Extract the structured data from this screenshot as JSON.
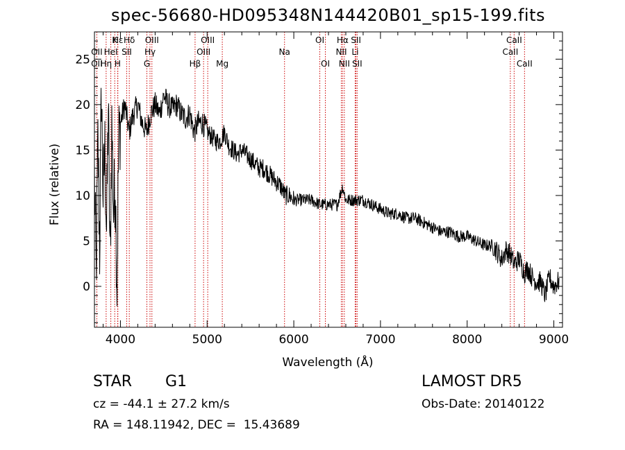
{
  "title": "spec-56680-HD095348N144420B01_sp15-199.fits",
  "object": {
    "class": "STAR",
    "subclass": "G1"
  },
  "survey": "LAMOST DR5",
  "cz": "cz = -44.1 ± 27.2 km/s",
  "obs_date": "Obs-Date: 20140122",
  "radec": "RA = 148.11942, DEC =  15.43689",
  "colors": {
    "spectrum": "#000000",
    "line_markers": "#cc0000",
    "axes": "#000000"
  },
  "chart_data": {
    "type": "line",
    "title": "spec-56680-HD095348N144420B01_sp15-199.fits",
    "xlabel": "Wavelength (Å)",
    "ylabel": "Flux (relative)",
    "xlim": [
      3700,
      9100
    ],
    "ylim": [
      -4.5,
      28
    ],
    "xticks": [
      4000,
      5000,
      6000,
      7000,
      8000,
      9000
    ],
    "yticks": [
      0,
      5,
      10,
      15,
      20,
      25
    ],
    "grid": false,
    "series": [
      {
        "x": [
          3700,
          3720,
          3740,
          3760,
          3780,
          3800,
          3820,
          3840,
          3860,
          3880,
          3900,
          3920,
          3940,
          3960,
          3980,
          4000,
          4050,
          4100,
          4150,
          4200,
          4250,
          4300,
          4350,
          4400,
          4450,
          4500,
          4550,
          4600,
          4650,
          4700,
          4750,
          4800,
          4850,
          4900,
          4950,
          5000,
          5050,
          5100,
          5150,
          5200,
          5250,
          5300,
          5350,
          5400,
          5450,
          5500,
          5550,
          5600,
          5650,
          5700,
          5750,
          5800,
          5850,
          5900,
          5950,
          6000,
          6100,
          6200,
          6300,
          6400,
          6500,
          6563,
          6600,
          6700,
          6800,
          6900,
          7000,
          7100,
          7200,
          7300,
          7400,
          7500,
          7600,
          7700,
          7800,
          7900,
          8000,
          8100,
          8200,
          8300,
          8400,
          8450,
          8500,
          8542,
          8600,
          8662,
          8700,
          8750,
          8800,
          8850,
          8900,
          8950,
          9000,
          9050
        ],
        "y": [
          12,
          1,
          16,
          4,
          22,
          10,
          15,
          6,
          20,
          2,
          18,
          8,
          12,
          0,
          16,
          18,
          20,
          17,
          19,
          20,
          18,
          17,
          19,
          20,
          19,
          21,
          20,
          19.5,
          20,
          19,
          18.5,
          19,
          17,
          18,
          18,
          17,
          16.5,
          16,
          16,
          17,
          15.5,
          15,
          14.5,
          15,
          14.5,
          14,
          13.5,
          13,
          13,
          12.5,
          12,
          11.5,
          11,
          10,
          10,
          9.5,
          9.5,
          9.5,
          9,
          9,
          9,
          11,
          9.5,
          9.5,
          9.5,
          9,
          8.5,
          8,
          8,
          7.5,
          7.5,
          7,
          6.5,
          6,
          6,
          5.5,
          5.5,
          5,
          4.5,
          4.5,
          3,
          4,
          3.5,
          2.5,
          3,
          1.5,
          2,
          1,
          0.5,
          0.5,
          -1,
          1,
          0,
          0.5
        ]
      }
    ],
    "line_labels": [
      {
        "name": "Hε",
        "wavelength": 3970,
        "row": 1
      },
      {
        "name": "K",
        "wavelength": 3934,
        "row": 1
      },
      {
        "name": "Hδ",
        "wavelength": 4102,
        "row": 1
      },
      {
        "name": "OIII",
        "wavelength": 4363,
        "row": 1
      },
      {
        "name": "OIII",
        "wavelength": 5007,
        "row": 1
      },
      {
        "name": "OI",
        "wavelength": 6300,
        "row": 1
      },
      {
        "name": "Hα",
        "wavelength": 6563,
        "row": 1
      },
      {
        "name": "SII",
        "wavelength": 6717,
        "row": 1
      },
      {
        "name": "CaII",
        "wavelength": 8542,
        "row": 1
      },
      {
        "name": "OII",
        "wavelength": 3727,
        "row": 2
      },
      {
        "name": "HeI",
        "wavelength": 3889,
        "row": 2
      },
      {
        "name": "SII",
        "wavelength": 4072,
        "row": 2
      },
      {
        "name": "Hγ",
        "wavelength": 4341,
        "row": 2
      },
      {
        "name": "OIII",
        "wavelength": 4959,
        "row": 2
      },
      {
        "name": "Na",
        "wavelength": 5893,
        "row": 2
      },
      {
        "name": "NII",
        "wavelength": 6548,
        "row": 2
      },
      {
        "name": "Li",
        "wavelength": 6708,
        "row": 2
      },
      {
        "name": "CaII",
        "wavelength": 8498,
        "row": 2
      },
      {
        "name": "OII",
        "wavelength": 3727,
        "row": 3
      },
      {
        "name": "Hη",
        "wavelength": 3835,
        "row": 3
      },
      {
        "name": "H",
        "wavelength": 3968,
        "row": 3
      },
      {
        "name": "G",
        "wavelength": 4305,
        "row": 3
      },
      {
        "name": "Hβ",
        "wavelength": 4861,
        "row": 3
      },
      {
        "name": "Mg",
        "wavelength": 5175,
        "row": 3
      },
      {
        "name": "OI",
        "wavelength": 6364,
        "row": 3
      },
      {
        "name": "NII",
        "wavelength": 6583,
        "row": 3
      },
      {
        "name": "SII",
        "wavelength": 6731,
        "row": 3
      },
      {
        "name": "CaII",
        "wavelength": 8662,
        "row": 3
      }
    ]
  }
}
